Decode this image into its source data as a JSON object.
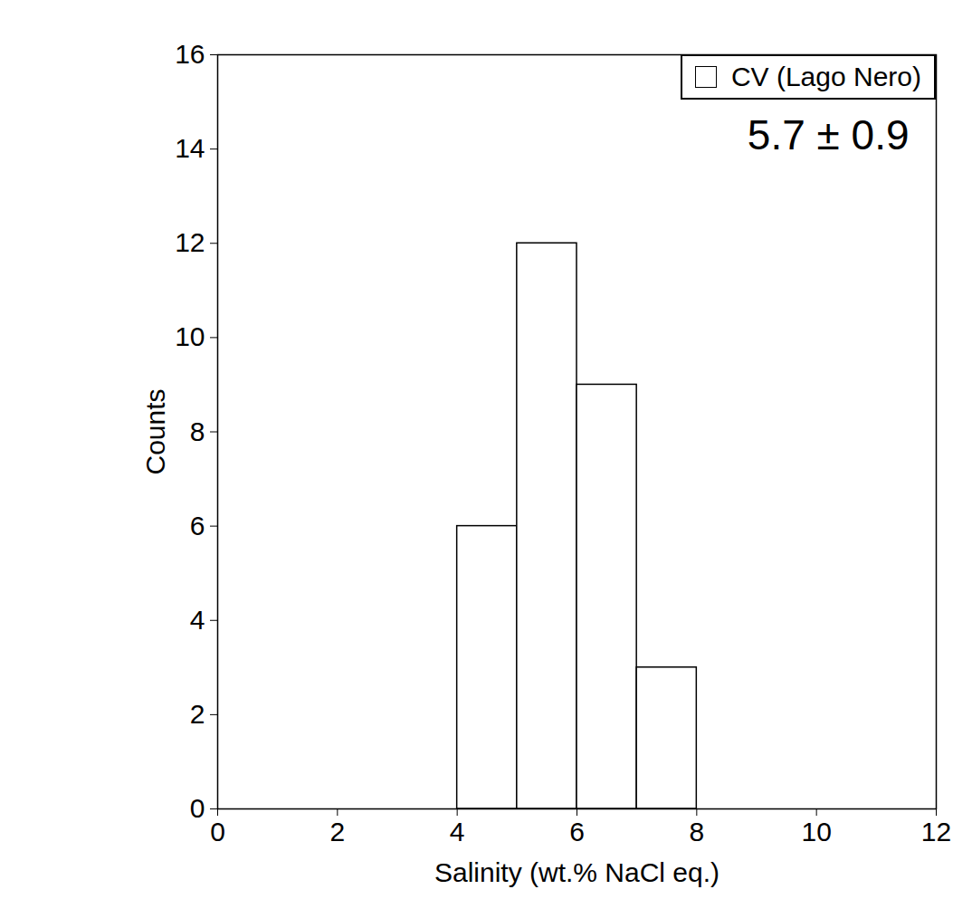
{
  "chart_data": {
    "type": "histogram",
    "x_label": "Salinity (wt.% NaCl eq.)",
    "y_label": "Counts",
    "bins": [
      4,
      5,
      6,
      7,
      8
    ],
    "series": [
      {
        "name": "CV (Lago Nero)",
        "color": "#ffffff",
        "values": [
          6,
          12,
          9,
          3
        ]
      }
    ],
    "xlim": [
      0,
      12
    ],
    "xticks": [
      0,
      2,
      4,
      6,
      8,
      10,
      12
    ],
    "ylim": [
      0,
      16
    ],
    "yticks": [
      0,
      2,
      4,
      6,
      8,
      10,
      12,
      14,
      16
    ],
    "legend": "top-right",
    "annotations": [
      {
        "text": "5.7 ± 0.9"
      }
    ]
  }
}
